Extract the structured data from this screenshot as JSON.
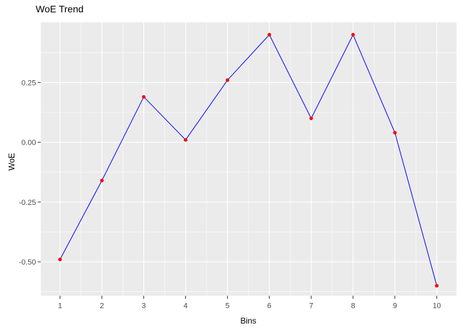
{
  "chart_data": {
    "type": "line",
    "title": "WoE Trend",
    "xlabel": "Bins",
    "ylabel": "WoE",
    "x": [
      1,
      2,
      3,
      4,
      5,
      6,
      7,
      8,
      9,
      10
    ],
    "y": [
      -0.49,
      -0.16,
      0.19,
      0.01,
      0.26,
      0.45,
      0.1,
      0.45,
      0.04,
      -0.6
    ],
    "x_tick_labels": [
      "1",
      "2",
      "3",
      "4",
      "5",
      "6",
      "7",
      "8",
      "9",
      "10"
    ],
    "x_tick_values": [
      1,
      2,
      3,
      4,
      5,
      6,
      7,
      8,
      9,
      10
    ],
    "y_tick_labels": [
      "0.25",
      "0.00",
      "-0.25",
      "-0.50"
    ],
    "y_tick_values": [
      0.25,
      0.0,
      -0.25,
      -0.5
    ],
    "x_minor_values": [
      1.5,
      2.5,
      3.5,
      4.5,
      5.5,
      6.5,
      7.5,
      8.5,
      9.5
    ],
    "y_minor_values": [
      0.375,
      0.125,
      -0.125,
      -0.375,
      -0.625
    ],
    "xlim": [
      0.541,
      10.472
    ],
    "ylim": [
      -0.642,
      0.502
    ],
    "grid": true,
    "legend": "none",
    "colors": {
      "line": "#0000FF",
      "point": "#FF0000",
      "panel_bg": "#EBEBEB",
      "grid_major": "#FFFFFF",
      "grid_minor": "#FFFFFF",
      "tick_label": "#4D4D4D",
      "tick_mark": "#333333",
      "title": "#000000",
      "axis_title": "#000000"
    }
  }
}
